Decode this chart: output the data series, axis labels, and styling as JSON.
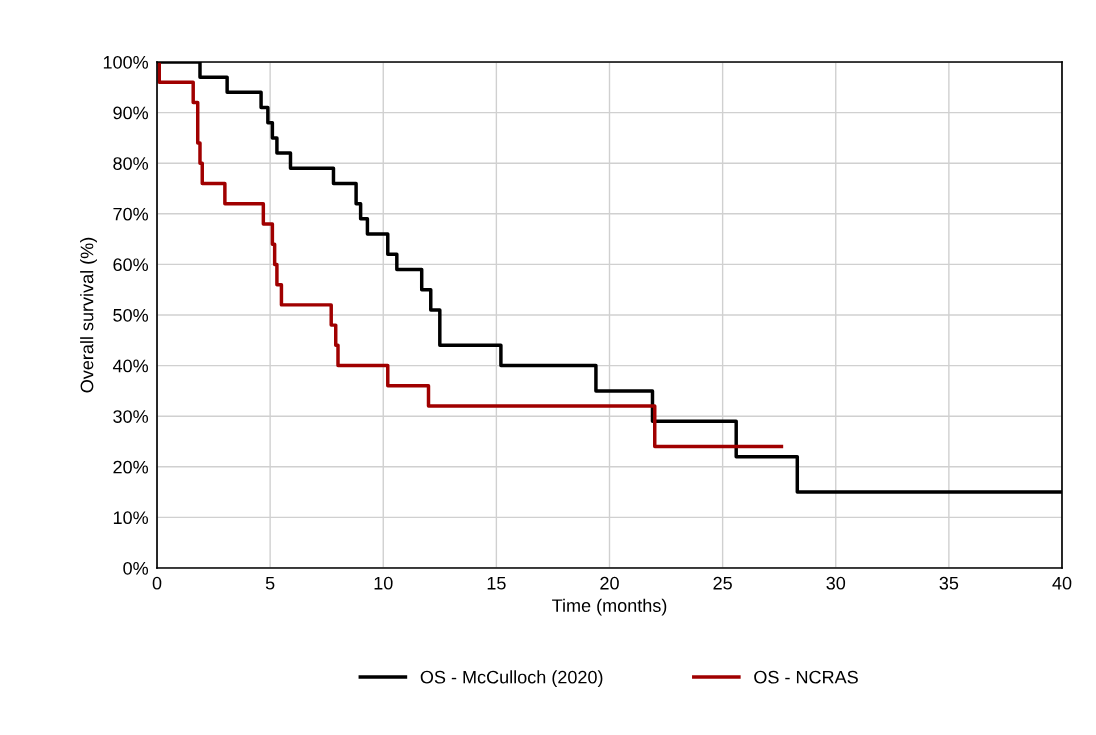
{
  "chart_data": {
    "type": "step",
    "xlabel": "Time (months)",
    "ylabel": "Overall survival (%)",
    "xlim": [
      0,
      40
    ],
    "xticks": [
      0,
      5,
      10,
      15,
      20,
      25,
      30,
      35,
      40
    ],
    "ylim": [
      0,
      100
    ],
    "yticks": [
      {
        "value": 0,
        "label": "0%"
      },
      {
        "value": 10,
        "label": "10%"
      },
      {
        "value": 20,
        "label": "20%"
      },
      {
        "value": 30,
        "label": "30%"
      },
      {
        "value": 40,
        "label": "40%"
      },
      {
        "value": 50,
        "label": "50%"
      },
      {
        "value": 60,
        "label": "60%"
      },
      {
        "value": 70,
        "label": "70%"
      },
      {
        "value": 80,
        "label": "80%"
      },
      {
        "value": 90,
        "label": "90%"
      },
      {
        "value": 100,
        "label": "100%"
      }
    ],
    "grid": true,
    "legend": "bottom",
    "marker": "none",
    "line_style": "solid",
    "series": [
      {
        "name": "OS - McCulloch (2020)",
        "color": "#000000",
        "x": [
          0,
          1.9,
          3.1,
          4.6,
          4.9,
          5.1,
          5.3,
          5.9,
          7.8,
          8.8,
          9.0,
          9.3,
          10.2,
          10.6,
          11.7,
          12.1,
          12.5,
          15.2,
          19.4,
          21.9,
          25.6,
          28.3,
          40
        ],
        "values": [
          100,
          97,
          94,
          91,
          88,
          85,
          82,
          79,
          76,
          72,
          69,
          66,
          62,
          59,
          55,
          51,
          44,
          40,
          35,
          29,
          22,
          15,
          15
        ]
      },
      {
        "name": "OS - NCRAS",
        "color": "#a00000",
        "x": [
          0,
          0.1,
          1.6,
          1.8,
          1.9,
          2.0,
          3.0,
          4.7,
          5.1,
          5.2,
          5.3,
          5.5,
          7.7,
          7.9,
          8.0,
          10.2,
          12.0,
          22.0,
          27.6
        ],
        "values": [
          100,
          96,
          92,
          84,
          80,
          76,
          72,
          68,
          64,
          60,
          56,
          52,
          48,
          44,
          40,
          36,
          32,
          24,
          24
        ]
      }
    ]
  }
}
